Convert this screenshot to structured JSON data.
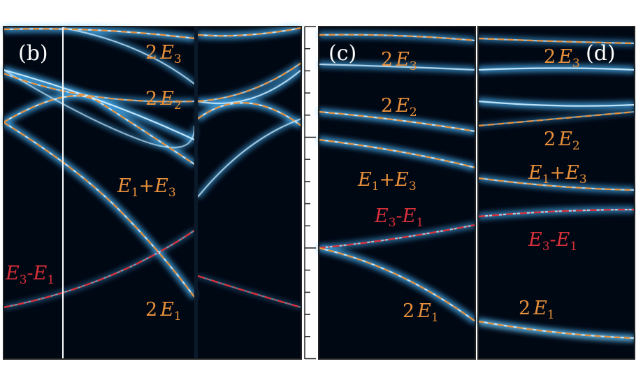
{
  "colors": {
    "background": "#000814",
    "glow": "#49b8ff",
    "glow_core": "#cfeeff",
    "orange_fit": "#e8903a",
    "red_fit": "#d8303a",
    "frame": "#222222",
    "cursor_line": "#ffffff"
  },
  "chart_data": [
    {
      "type": "line",
      "panel_label": "(b)",
      "series": [
        {
          "name": "2E3",
          "label": {
            "coef": "2",
            "sym": "E",
            "sub": "3"
          }
        },
        {
          "name": "2E2",
          "label": {
            "coef": "2",
            "sym": "E",
            "sub": "2"
          }
        },
        {
          "name": "E1+E3",
          "label": {
            "parts": [
              "E",
              "1",
              "+",
              "E",
              "3"
            ]
          }
        },
        {
          "name": "E3-E1",
          "label": {
            "parts": [
              "E",
              "3",
              "-",
              "E",
              "1"
            ]
          }
        },
        {
          "name": "2E1",
          "label": {
            "coef": "2",
            "sym": "E",
            "sub": "1"
          }
        }
      ]
    },
    {
      "type": "line",
      "panel_label": "(c)",
      "series": [
        {
          "name": "2E3",
          "label": {
            "coef": "2",
            "sym": "E",
            "sub": "3"
          }
        },
        {
          "name": "2E2",
          "label": {
            "coef": "2",
            "sym": "E",
            "sub": "2"
          }
        },
        {
          "name": "E1+E3",
          "label": {
            "parts": [
              "E",
              "1",
              "+",
              "E",
              "3"
            ]
          }
        },
        {
          "name": "E3-E1",
          "label": {
            "parts": [
              "E",
              "3",
              "-",
              "E",
              "1"
            ]
          }
        },
        {
          "name": "2E1",
          "label": {
            "coef": "2",
            "sym": "E",
            "sub": "1"
          }
        }
      ]
    },
    {
      "type": "line",
      "panel_label": "(d)",
      "series": [
        {
          "name": "2E3",
          "label": {
            "coef": "2",
            "sym": "E",
            "sub": "3"
          }
        },
        {
          "name": "2E2",
          "label": {
            "coef": "2",
            "sym": "E",
            "sub": "2"
          }
        },
        {
          "name": "E1+E3",
          "label": {
            "parts": [
              "E",
              "1",
              "+",
              "E",
              "3"
            ]
          }
        },
        {
          "name": "E3-E1",
          "label": {
            "parts": [
              "E",
              "3",
              "-",
              "E",
              "1"
            ]
          }
        },
        {
          "name": "2E1",
          "label": {
            "coef": "2",
            "sym": "E",
            "sub": "1"
          }
        }
      ]
    }
  ]
}
